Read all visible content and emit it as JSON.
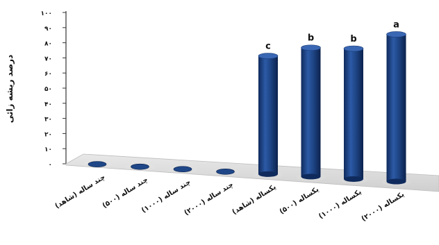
{
  "chart_data": {
    "type": "bar",
    "ylabel": "درصد ریشه زائی",
    "xlabel": "",
    "title": "",
    "ylim": [
      0,
      100
    ],
    "yticks": [
      "۰",
      "۱۰",
      "۲۰",
      "۳۰",
      "۴۰",
      "۵۰",
      "۶۰",
      "۷۰",
      "۸۰",
      "۹۰",
      "۱۰۰"
    ],
    "categories": [
      "چند ساله (شاهد)",
      "چند ساله (۵۰۰)",
      "چند ساله (۱۰۰۰)",
      "چند ساله (۲۰۰۰)",
      "یکساله (شاهد)",
      "یکساله (۵۰۰)",
      "یکساله (۱۰۰۰)",
      "یکساله (۲۰۰۰)"
    ],
    "values": [
      0,
      0,
      0,
      0,
      74,
      80,
      80,
      90
    ],
    "letters": [
      "",
      "",
      "",
      "",
      "c",
      "b",
      "b",
      "a"
    ],
    "bar_color": "#1f4788",
    "grid": false,
    "legend": "none",
    "style": "3d-cylinder"
  }
}
